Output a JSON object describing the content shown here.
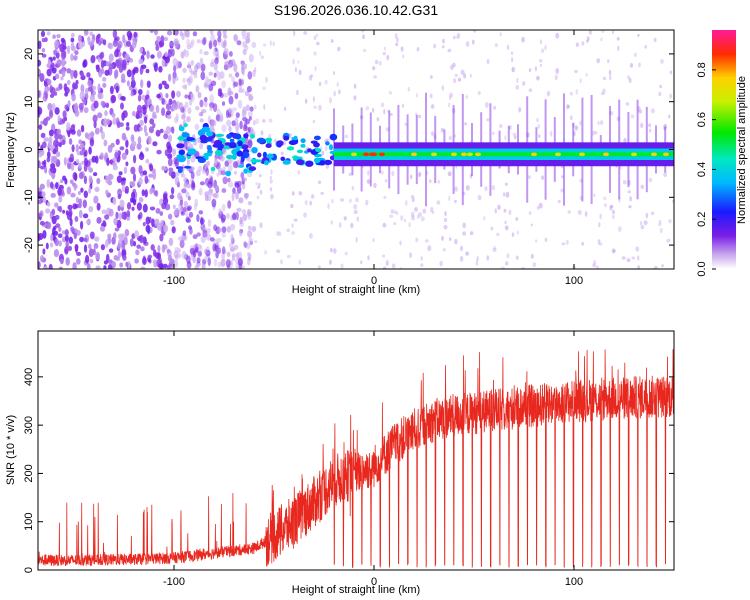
{
  "title": "S196.2026.036.10.42.G31",
  "chart_data": [
    {
      "type": "heatmap",
      "name": "spectrogram",
      "xlabel": "Height of straight line (km)",
      "ylabel": "Frequency (Hz)",
      "xlim": [
        -168,
        150
      ],
      "ylim": [
        -25,
        25
      ],
      "xticks": [
        -100,
        0,
        100
      ],
      "yticks": [
        -20,
        -10,
        0,
        10,
        20
      ],
      "colorbar": {
        "label": "Normalized spectral amplitude",
        "range": [
          0,
          0.96
        ],
        "ticks": [
          0.0,
          0.2,
          0.4,
          0.6,
          0.8
        ]
      },
      "features": {
        "noise_region_x": [
          -168,
          -60
        ],
        "transition_region_x": [
          -100,
          -20
        ],
        "carrier_line_x": [
          -20,
          150
        ],
        "carrier_frequency_hz": -1,
        "carrier_peak_value": 0.9
      }
    },
    {
      "type": "line",
      "name": "snr",
      "xlabel": "Height of straight line (km)",
      "ylabel": "SNR (10 * v/v)",
      "xlim": [
        -168,
        150
      ],
      "ylim": [
        0,
        495
      ],
      "xticks": [
        -100,
        0,
        100
      ],
      "yticks": [
        0,
        100,
        200,
        300,
        400
      ],
      "color": "#e8281e",
      "series": [
        {
          "name": "SNR trend",
          "x": [
            -168,
            -150,
            -120,
            -100,
            -80,
            -60,
            -50,
            -40,
            -30,
            -20,
            -10,
            0,
            10,
            20,
            30,
            40,
            60,
            80,
            100,
            120,
            150
          ],
          "values": [
            20,
            20,
            22,
            25,
            35,
            45,
            70,
            100,
            140,
            185,
            200,
            215,
            260,
            290,
            310,
            320,
            330,
            340,
            350,
            355,
            360
          ]
        }
      ],
      "dropouts_to_zero_x_start": -20,
      "spike_maxima": 460
    }
  ]
}
